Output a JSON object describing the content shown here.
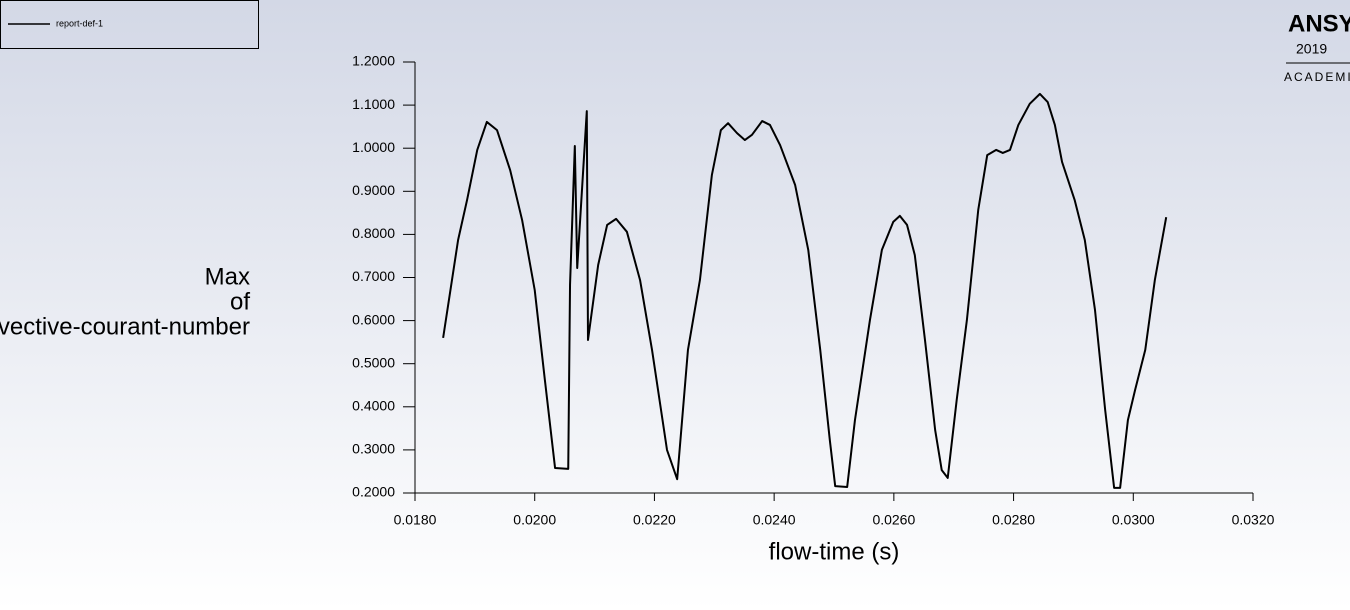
{
  "chart_data": {
    "type": "line",
    "xlabel": "flow-time (s)",
    "ylabel": [
      "Max",
      "of",
      "convective-courant-number"
    ],
    "brand": {
      "name": "ANSYS",
      "year": "2019",
      "edition": "ACADEMIC"
    },
    "legend": "top-left",
    "xlim": [
      0.018,
      0.032
    ],
    "ylim": [
      0.2,
      1.2
    ],
    "xticks": [
      {
        "value": 0.018,
        "label": "0.0180"
      },
      {
        "value": 0.02,
        "label": "0.0200"
      },
      {
        "value": 0.022,
        "label": "0.0220"
      },
      {
        "value": 0.024,
        "label": "0.0240"
      },
      {
        "value": 0.026,
        "label": "0.0260"
      },
      {
        "value": 0.028,
        "label": "0.0280"
      },
      {
        "value": 0.03,
        "label": "0.0300"
      },
      {
        "value": 0.032,
        "label": "0.0320"
      }
    ],
    "yticks": [
      {
        "value": 0.2,
        "label": "0.2000"
      },
      {
        "value": 0.3,
        "label": "0.3000"
      },
      {
        "value": 0.4,
        "label": "0.4000"
      },
      {
        "value": 0.5,
        "label": "0.5000"
      },
      {
        "value": 0.6,
        "label": "0.6000"
      },
      {
        "value": 0.7,
        "label": "0.7000"
      },
      {
        "value": 0.8,
        "label": "0.8000"
      },
      {
        "value": 0.9,
        "label": "0.9000"
      },
      {
        "value": 1.0,
        "label": "1.0000"
      },
      {
        "value": 1.1,
        "label": "1.1000"
      },
      {
        "value": 1.2,
        "label": "1.2000"
      }
    ],
    "x": [
      0.01847,
      0.01872,
      0.01887,
      0.01904,
      0.0192,
      0.01937,
      0.01959,
      0.01979,
      0.02,
      0.02017,
      0.02034,
      0.02056,
      0.02059,
      0.02067,
      0.02071,
      0.02087,
      0.02089,
      0.02106,
      0.02121,
      0.02136,
      0.02154,
      0.02176,
      0.02196,
      0.02221,
      0.02238,
      0.02256,
      0.02276,
      0.02296,
      0.02311,
      0.02323,
      0.02338,
      0.02351,
      0.02363,
      0.0238,
      0.02393,
      0.0241,
      0.02435,
      0.02457,
      0.02477,
      0.02493,
      0.02502,
      0.02522,
      0.02535,
      0.0256,
      0.0258,
      0.02599,
      0.0261,
      0.02622,
      0.02635,
      0.02652,
      0.02669,
      0.0268,
      0.0269,
      0.02705,
      0.02722,
      0.02741,
      0.02756,
      0.02771,
      0.02782,
      0.02794,
      0.02808,
      0.02827,
      0.02844,
      0.02857,
      0.02869,
      0.02881,
      0.02902,
      0.02919,
      0.02936,
      0.02953,
      0.02968,
      0.02978,
      0.02991,
      0.03003,
      0.0302,
      0.03036,
      0.03055
    ],
    "series": [
      {
        "name": "report-def-1",
        "color": "#000000",
        "values": [
          0.56,
          0.787,
          0.88,
          0.996,
          1.061,
          1.042,
          0.949,
          0.833,
          0.671,
          0.462,
          0.258,
          0.256,
          0.683,
          1.005,
          0.722,
          1.086,
          0.555,
          0.729,
          0.822,
          0.836,
          0.806,
          0.694,
          0.532,
          0.3,
          0.232,
          0.532,
          0.694,
          0.938,
          1.042,
          1.058,
          1.035,
          1.019,
          1.031,
          1.063,
          1.054,
          1.007,
          0.915,
          0.764,
          0.532,
          0.323,
          0.216,
          0.214,
          0.369,
          0.601,
          0.764,
          0.829,
          0.843,
          0.822,
          0.752,
          0.555,
          0.346,
          0.253,
          0.235,
          0.416,
          0.601,
          0.857,
          0.984,
          0.996,
          0.989,
          0.996,
          1.054,
          1.103,
          1.126,
          1.107,
          1.054,
          0.968,
          0.88,
          0.787,
          0.625,
          0.393,
          0.212,
          0.212,
          0.369,
          0.439,
          0.532,
          0.694,
          0.84
        ]
      }
    ]
  }
}
